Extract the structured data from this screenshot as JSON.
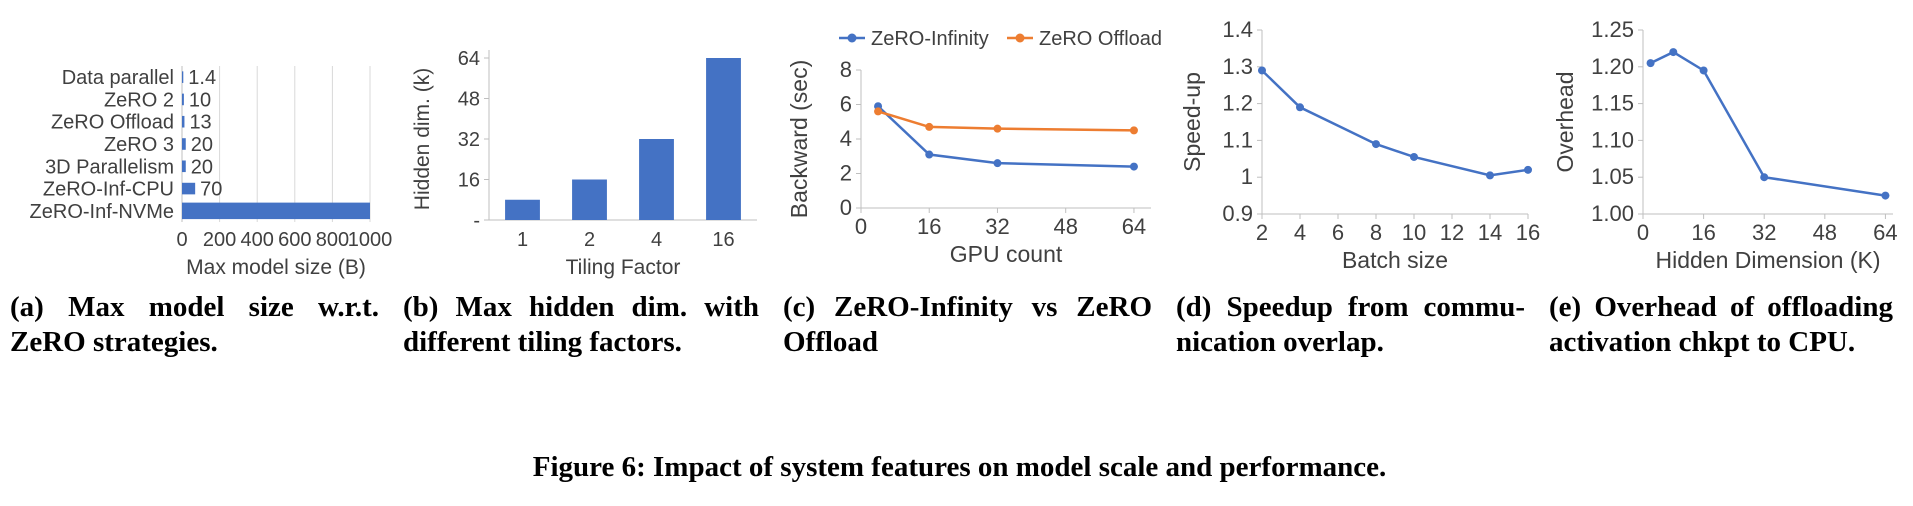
{
  "figure_caption": "Figure 6: Impact of system features on model scale and performance.",
  "subcaptions": [
    "(a) Max model size w.r.t. ZeRO strategies.",
    "(b) Max hidden dim. with different tiling factors.",
    "(c) ZeRO-Infinity vs ZeRO Offload",
    "(d) Speedup from commu­nication overlap.",
    "(e) Overhead of offloading activation chkpt to CPU."
  ],
  "colors": {
    "series_blue": "#4472C4",
    "series_orange": "#ED7D31",
    "grid": "#D9D9D9",
    "axis": "#BFBFBF",
    "text": "#404040"
  },
  "chart_data": [
    {
      "id": "a",
      "type": "barh",
      "categories": [
        "Data parallel",
        "ZeRO 2",
        "ZeRO Offload",
        "ZeRO 3",
        "3D Parallelism",
        "ZeRO-Inf-CPU",
        "ZeRO-Inf-NVMe"
      ],
      "values": [
        1.4,
        10,
        13,
        20,
        20,
        70,
        1000
      ],
      "data_labels": [
        "1.4",
        "10",
        "13",
        "20",
        "20",
        "70",
        ""
      ],
      "xlabel": "Max model size (B)",
      "xlim": [
        0,
        1000
      ],
      "xticks": [
        0,
        200,
        400,
        600,
        800,
        1000
      ],
      "grid": true
    },
    {
      "id": "b",
      "type": "bar",
      "categories": [
        "1",
        "2",
        "4",
        "16"
      ],
      "values": [
        8,
        16,
        32,
        64
      ],
      "xlabel": "Tiling Factor",
      "ylabel": "Hidden dim. (k)",
      "ylim": [
        0,
        64
      ],
      "yticks": [
        0,
        16,
        32,
        48,
        64
      ],
      "ytick_labels": [
        "-",
        "16",
        "32",
        "48",
        "64"
      ],
      "grid": false
    },
    {
      "id": "c",
      "type": "line",
      "series": [
        {
          "name": "ZeRO-Infinity",
          "color_key": "series_blue",
          "x": [
            4,
            16,
            32,
            64
          ],
          "y": [
            5.9,
            3.1,
            2.6,
            2.4
          ]
        },
        {
          "name": "ZeRO Offload",
          "color_key": "series_orange",
          "x": [
            4,
            16,
            32,
            64
          ],
          "y": [
            5.6,
            4.7,
            4.6,
            4.5
          ]
        }
      ],
      "legend": true,
      "legend_position": "top",
      "xlabel": "GPU count",
      "ylabel": "Backward (sec)",
      "xlim": [
        0,
        68
      ],
      "xticks": [
        0,
        16,
        32,
        48,
        64
      ],
      "ylim": [
        0,
        8
      ],
      "yticks": [
        0,
        2,
        4,
        6,
        8
      ],
      "grid": false
    },
    {
      "id": "d",
      "type": "line",
      "series": [
        {
          "name": "speedup",
          "color_key": "series_blue",
          "x": [
            2,
            4,
            8,
            10,
            14,
            16
          ],
          "y": [
            1.29,
            1.19,
            1.09,
            1.055,
            1.005,
            1.02
          ]
        }
      ],
      "legend": false,
      "xlabel": "Batch size",
      "ylabel": "Speed-up",
      "xlim": [
        2,
        16
      ],
      "xticks": [
        2,
        4,
        6,
        8,
        10,
        12,
        14,
        16
      ],
      "ylim": [
        0.9,
        1.4
      ],
      "yticks": [
        0.9,
        1,
        1.1,
        1.2,
        1.3,
        1.4
      ],
      "ytick_labels": [
        "0.9",
        "1",
        "1.1",
        "1.2",
        "1.3",
        "1.4"
      ],
      "grid": false
    },
    {
      "id": "e",
      "type": "line",
      "series": [
        {
          "name": "overhead",
          "color_key": "series_blue",
          "x": [
            2,
            8,
            16,
            32,
            64
          ],
          "y": [
            1.205,
            1.22,
            1.195,
            1.05,
            1.025
          ]
        }
      ],
      "legend": false,
      "xlabel": "Hidden Dimension (K)",
      "ylabel": "Overhead",
      "xlim": [
        0,
        66
      ],
      "xticks": [
        0,
        16,
        32,
        48,
        64
      ],
      "ylim": [
        1.0,
        1.25
      ],
      "yticks": [
        1.0,
        1.05,
        1.1,
        1.15,
        1.2,
        1.25
      ],
      "ytick_labels": [
        "1.00",
        "1.05",
        "1.10",
        "1.15",
        "1.20",
        "1.25"
      ],
      "grid": false
    }
  ]
}
